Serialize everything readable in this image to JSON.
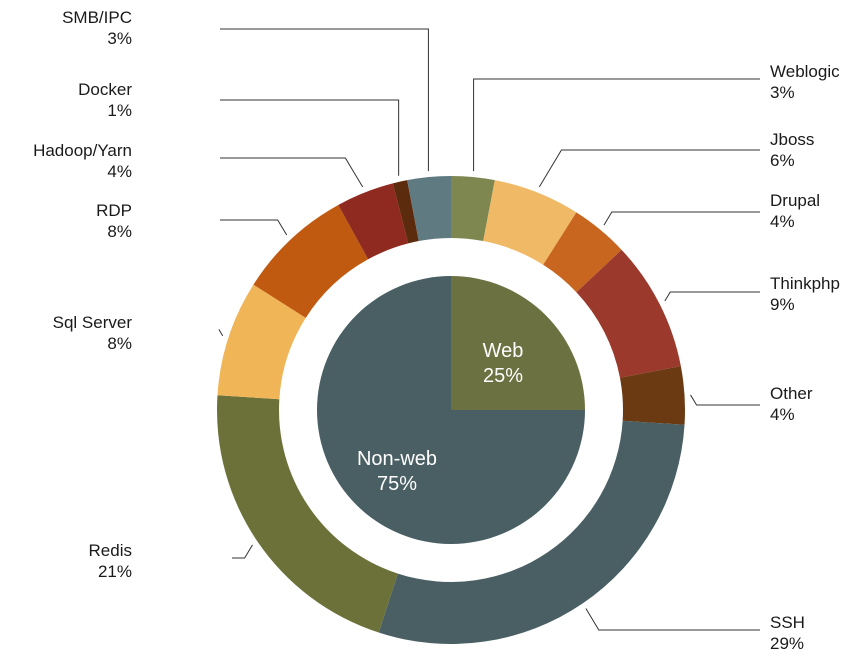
{
  "chart_data": [
    {
      "type": "pie",
      "values": [
        {
          "label": "Web",
          "value": 25,
          "text": "25%",
          "color": "#6b7140"
        },
        {
          "label": "Non-web",
          "value": 75,
          "text": "75%",
          "color": "#4a5f63"
        }
      ]
    },
    {
      "type": "pie",
      "variant": "donut",
      "values": [
        {
          "label": "Weblogic",
          "value": 3,
          "text": "3%",
          "color": "#7f8750"
        },
        {
          "label": "Jboss",
          "value": 6,
          "text": "6%",
          "color": "#f0b965"
        },
        {
          "label": "Drupal",
          "value": 4,
          "text": "4%",
          "color": "#c8661f"
        },
        {
          "label": "Thinkphp",
          "value": 9,
          "text": "9%",
          "color": "#9b3a2c"
        },
        {
          "label": "Other",
          "value": 4,
          "text": "4%",
          "color": "#6b3a12"
        },
        {
          "label": "SSH",
          "value": 29,
          "text": "29%",
          "color": "#4a5f63"
        },
        {
          "label": "Redis",
          "value": 21,
          "text": "21%",
          "color": "#6b7139"
        },
        {
          "label": "Sql Server",
          "value": 8,
          "text": "8%",
          "color": "#f0b556"
        },
        {
          "label": "RDP",
          "value": 8,
          "text": "8%",
          "color": "#c05a10"
        },
        {
          "label": "Hadoop/Yarn",
          "value": 4,
          "text": "4%",
          "color": "#8e2a20"
        },
        {
          "label": "Docker",
          "value": 1,
          "text": "1%",
          "color": "#5c2a0c"
        },
        {
          "label": "SMB/IPC",
          "value": 3,
          "text": "3%",
          "color": "#5f7a80"
        }
      ]
    }
  ]
}
